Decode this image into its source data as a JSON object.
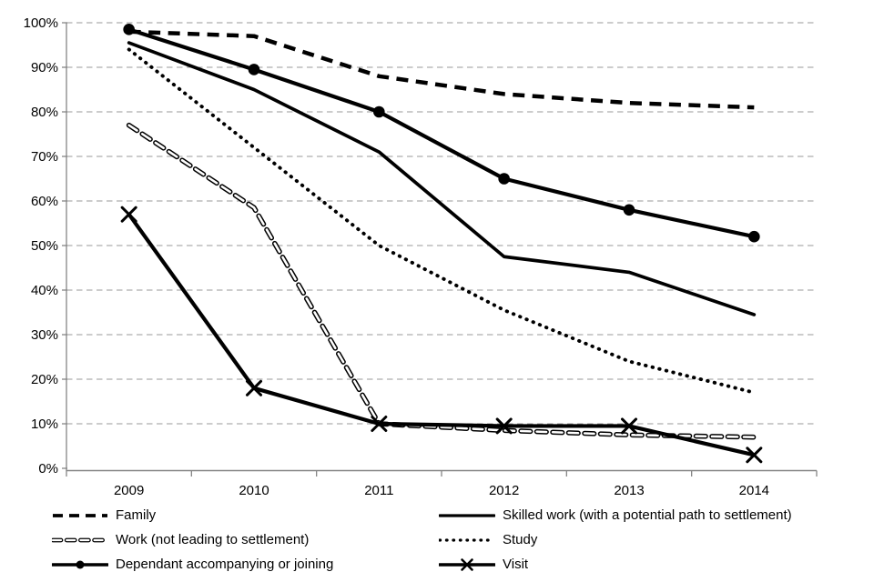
{
  "chart_data": {
    "type": "line",
    "title": "",
    "xlabel": "",
    "ylabel": "",
    "categories": [
      "2009",
      "2010",
      "2011",
      "2012",
      "2013",
      "2014"
    ],
    "y_ticks": [
      "100%",
      "90%",
      "80%",
      "70%",
      "60%",
      "50%",
      "40%",
      "30%",
      "20%",
      "10%",
      "0%"
    ],
    "ylim": [
      0,
      100
    ],
    "grid": "horizontal-dashed",
    "legend_position": "bottom-two-columns",
    "series": [
      {
        "name": "Family",
        "style": "dash-thick",
        "marker": "none",
        "values": [
          98,
          97,
          88,
          84,
          82,
          81
        ]
      },
      {
        "name": "Skilled work (with a potential path to settlement)",
        "style": "solid",
        "marker": "none",
        "values": [
          95.5,
          85,
          71,
          47.5,
          44,
          34.5
        ]
      },
      {
        "name": "Work (not leading to settlement)",
        "style": "dash-hollow",
        "marker": "none",
        "values": [
          77,
          58.5,
          10,
          8.5,
          7.5,
          7
        ]
      },
      {
        "name": "Study",
        "style": "dotted",
        "marker": "none",
        "values": [
          94,
          72,
          50,
          35.5,
          24,
          17
        ]
      },
      {
        "name": "Dependant accompanying or joining",
        "style": "solid-thick",
        "marker": "circle",
        "values": [
          98.5,
          89.5,
          80,
          65,
          58,
          52
        ]
      },
      {
        "name": "Visit",
        "style": "solid-thick",
        "marker": "x",
        "values": [
          57,
          18,
          10,
          9.5,
          9.5,
          3
        ]
      }
    ]
  },
  "colors": {
    "series": "#000000",
    "marker_fill": "#000000",
    "hollow_core": "#ffffff",
    "grid": "#999999",
    "axis": "#858585",
    "background": "#ffffff",
    "text": "#000000"
  }
}
